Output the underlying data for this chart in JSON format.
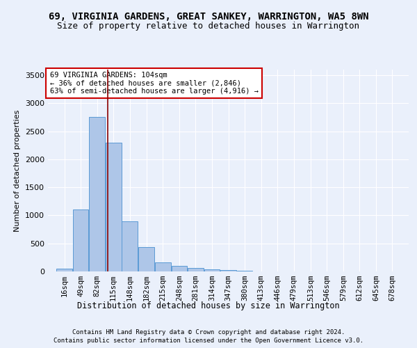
{
  "title1": "69, VIRGINIA GARDENS, GREAT SANKEY, WARRINGTON, WA5 8WN",
  "title2": "Size of property relative to detached houses in Warrington",
  "xlabel": "Distribution of detached houses by size in Warrington",
  "ylabel": "Number of detached properties",
  "footer1": "Contains HM Land Registry data © Crown copyright and database right 2024.",
  "footer2": "Contains public sector information licensed under the Open Government Licence v3.0.",
  "annotation_line1": "69 VIRGINIA GARDENS: 104sqm",
  "annotation_line2": "← 36% of detached houses are smaller (2,846)",
  "annotation_line3": "63% of semi-detached houses are larger (4,916) →",
  "bar_color": "#aec6e8",
  "bar_edge_color": "#5b9bd5",
  "vline_color": "#8b0000",
  "vline_x": 104,
  "categories": [
    16,
    49,
    82,
    115,
    148,
    182,
    215,
    248,
    281,
    314,
    347,
    380,
    413,
    446,
    479,
    513,
    546,
    579,
    612,
    645,
    678
  ],
  "bin_width": 33,
  "values": [
    50,
    1100,
    2750,
    2300,
    900,
    430,
    165,
    100,
    60,
    40,
    20,
    10,
    5,
    3,
    2,
    2,
    1,
    1,
    1,
    1,
    1
  ],
  "ylim": [
    0,
    3600
  ],
  "yticks": [
    0,
    500,
    1000,
    1500,
    2000,
    2500,
    3000,
    3500
  ],
  "background_color": "#eaf0fb",
  "grid_color": "#ffffff",
  "title1_fontsize": 10,
  "title2_fontsize": 9,
  "axis_fontsize": 8,
  "footer_fontsize": 6.5
}
